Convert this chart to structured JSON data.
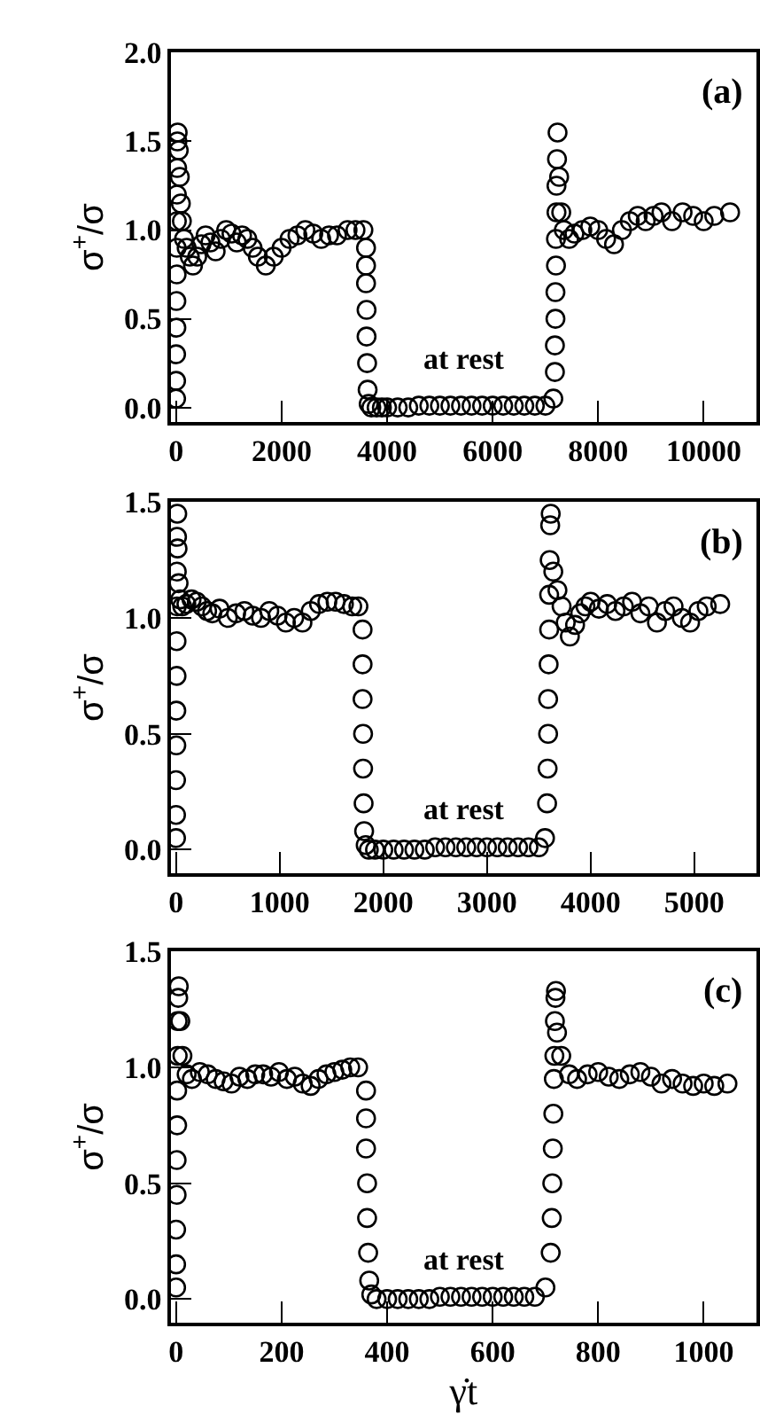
{
  "chart_data": [
    {
      "type": "scatter",
      "ylabel": "σ$^{+}$/σ",
      "annotations": [
        "(a)",
        "at rest"
      ],
      "marker": "circle",
      "xlim": [
        -100,
        11000
      ],
      "ylim": [
        -0.08,
        2.0
      ],
      "xticks": [
        0,
        2000,
        4000,
        6000,
        8000,
        10000
      ],
      "yticks": [
        {
          "value": 0,
          "label": "0.0"
        },
        {
          "value": 0.5,
          "label": "0.5"
        },
        {
          "value": 1,
          "label": "1.0"
        },
        {
          "value": 1.5,
          "label": "1.5"
        },
        {
          "value": 2,
          "label": "2.0"
        }
      ],
      "series": [
        {
          "color": "#000000",
          "x": [
            0,
            0,
            0,
            5,
            5,
            10,
            10,
            15,
            15,
            20,
            25,
            30,
            50,
            70,
            90,
            110,
            150,
            200,
            260,
            320,
            400,
            480,
            560,
            650,
            750,
            850,
            950,
            1050,
            1150,
            1250,
            1350,
            1450,
            1550,
            1700,
            1850,
            2000,
            2150,
            2300,
            2450,
            2600,
            2750,
            2900,
            3050,
            3250,
            3400,
            3550,
            3600,
            3600,
            3600,
            3610,
            3610,
            3620,
            3630,
            3650,
            3700,
            3800,
            3900,
            4000,
            4200,
            4400,
            4600,
            4800,
            5000,
            5200,
            5400,
            5600,
            5800,
            6000,
            6200,
            6400,
            6600,
            6800,
            7000,
            7150,
            7180,
            7180,
            7190,
            7190,
            7200,
            7200,
            7210,
            7210,
            7220,
            7230,
            7260,
            7300,
            7350,
            7450,
            7550,
            7700,
            7850,
            8000,
            8150,
            8300,
            8450,
            8600,
            8750,
            8900,
            9050,
            9200,
            9400,
            9600,
            9800,
            10000,
            10200,
            10500
          ],
          "values": [
            0.05,
            0.15,
            0.3,
            0.45,
            0.6,
            0.75,
            0.9,
            1.05,
            1.2,
            1.35,
            1.5,
            1.55,
            1.45,
            1.3,
            1.15,
            1.05,
            0.95,
            0.9,
            0.85,
            0.8,
            0.85,
            0.92,
            0.97,
            0.93,
            0.88,
            0.95,
            1.0,
            0.98,
            0.93,
            0.97,
            0.95,
            0.9,
            0.85,
            0.8,
            0.85,
            0.9,
            0.95,
            0.97,
            1.0,
            0.98,
            0.95,
            0.97,
            0.97,
            1.0,
            1.0,
            1.0,
            0.9,
            0.8,
            0.7,
            0.55,
            0.4,
            0.25,
            0.1,
            0.02,
            0,
            0,
            0,
            0,
            0,
            0,
            0.01,
            0.01,
            0.01,
            0.01,
            0.01,
            0.01,
            0.01,
            0.01,
            0.01,
            0.01,
            0.01,
            0.01,
            0.01,
            0.05,
            0.2,
            0.35,
            0.5,
            0.65,
            0.8,
            0.95,
            1.1,
            1.25,
            1.4,
            1.55,
            1.3,
            1.1,
            1.0,
            0.95,
            0.98,
            1.0,
            1.02,
            1.0,
            0.95,
            0.92,
            1.0,
            1.05,
            1.08,
            1.05,
            1.08,
            1.1,
            1.05,
            1.1,
            1.08,
            1.05,
            1.08,
            1.1
          ]
        }
      ]
    },
    {
      "type": "scatter",
      "ylabel": "σ$^{+}$/σ",
      "annotations": [
        "(b)",
        "at rest"
      ],
      "marker": "circle",
      "xlim": [
        -50,
        5600
      ],
      "ylim": [
        -0.1,
        1.5
      ],
      "xticks": [
        0,
        1000,
        2000,
        3000,
        4000,
        5000
      ],
      "yticks": [
        {
          "value": 0,
          "label": "0.0"
        },
        {
          "value": 0.5,
          "label": "0.5"
        },
        {
          "value": 1,
          "label": "1.0"
        },
        {
          "value": 1.5,
          "label": "1.5"
        }
      ],
      "series": [
        {
          "color": "#000000",
          "x": [
            0,
            0,
            0,
            3,
            3,
            5,
            5,
            8,
            8,
            10,
            12,
            15,
            25,
            40,
            60,
            100,
            150,
            200,
            250,
            300,
            350,
            420,
            500,
            580,
            660,
            740,
            820,
            900,
            980,
            1060,
            1140,
            1220,
            1300,
            1380,
            1460,
            1540,
            1620,
            1700,
            1760,
            1800,
            1800,
            1800,
            1805,
            1805,
            1810,
            1815,
            1830,
            1860,
            1920,
            2000,
            2100,
            2200,
            2300,
            2400,
            2500,
            2600,
            2700,
            2800,
            2900,
            3000,
            3100,
            3200,
            3300,
            3400,
            3500,
            3560,
            3580,
            3585,
            3590,
            3590,
            3595,
            3600,
            3600,
            3605,
            3610,
            3615,
            3640,
            3680,
            3720,
            3760,
            3800,
            3850,
            3900,
            3950,
            4000,
            4080,
            4160,
            4240,
            4320,
            4400,
            4480,
            4560,
            4640,
            4720,
            4800,
            4880,
            4960,
            5040,
            5120,
            5250
          ],
          "values": [
            0.05,
            0.15,
            0.3,
            0.45,
            0.6,
            0.75,
            0.9,
            1.05,
            1.2,
            1.35,
            1.45,
            1.3,
            1.15,
            1.08,
            1.05,
            1.06,
            1.08,
            1.07,
            1.05,
            1.03,
            1.02,
            1.04,
            1.0,
            1.02,
            1.03,
            1.01,
            1.0,
            1.03,
            1.01,
            0.98,
            1.0,
            0.98,
            1.03,
            1.06,
            1.07,
            1.07,
            1.06,
            1.05,
            1.05,
            0.95,
            0.8,
            0.65,
            0.5,
            0.35,
            0.2,
            0.08,
            0.02,
            0,
            0,
            0,
            0,
            0,
            0,
            0,
            0.01,
            0.01,
            0.01,
            0.01,
            0.01,
            0.01,
            0.01,
            0.01,
            0.01,
            0.01,
            0.01,
            0.05,
            0.2,
            0.35,
            0.5,
            0.65,
            0.8,
            0.95,
            1.1,
            1.25,
            1.4,
            1.45,
            1.2,
            1.12,
            1.05,
            0.98,
            0.92,
            0.97,
            1.02,
            1.05,
            1.07,
            1.04,
            1.06,
            1.03,
            1.05,
            1.07,
            1.02,
            1.05,
            0.98,
            1.03,
            1.05,
            1.0,
            0.98,
            1.03,
            1.05,
            1.06
          ]
        }
      ]
    },
    {
      "type": "scatter",
      "xlabel": "γ̇t",
      "ylabel": "σ$^{+}$/σ",
      "annotations": [
        "(c)",
        "at rest"
      ],
      "marker": "circle",
      "xlim": [
        -10,
        1100
      ],
      "ylim": [
        -0.1,
        1.5
      ],
      "xticks": [
        0,
        200,
        400,
        600,
        800,
        1000
      ],
      "yticks": [
        {
          "value": 0,
          "label": "0.0"
        },
        {
          "value": 0.5,
          "label": "0.5"
        },
        {
          "value": 1,
          "label": "1.0"
        },
        {
          "value": 1.5,
          "label": "1.5"
        }
      ],
      "series": [
        {
          "color": "#000000",
          "x": [
            0,
            0,
            0,
            1,
            1,
            2,
            2,
            3,
            3,
            4,
            5,
            8,
            12,
            20,
            30,
            45,
            60,
            75,
            90,
            105,
            120,
            135,
            150,
            165,
            180,
            195,
            210,
            225,
            240,
            255,
            270,
            285,
            300,
            315,
            330,
            345,
            360,
            360,
            360,
            362,
            362,
            364,
            366,
            370,
            380,
            400,
            420,
            440,
            460,
            480,
            500,
            520,
            540,
            560,
            580,
            600,
            620,
            640,
            660,
            680,
            700,
            710,
            712,
            713,
            714,
            715,
            716,
            717,
            718,
            719,
            720,
            722,
            730,
            745,
            760,
            780,
            800,
            820,
            840,
            860,
            880,
            900,
            920,
            940,
            960,
            980,
            1000,
            1020,
            1045
          ],
          "values": [
            0.05,
            0.15,
            0.3,
            0.45,
            0.6,
            0.75,
            0.9,
            1.05,
            1.2,
            1.3,
            1.35,
            1.2,
            1.05,
            0.97,
            0.95,
            0.98,
            0.97,
            0.95,
            0.94,
            0.93,
            0.96,
            0.95,
            0.97,
            0.97,
            0.96,
            0.98,
            0.95,
            0.96,
            0.93,
            0.92,
            0.95,
            0.97,
            0.98,
            0.99,
            1.0,
            1.0,
            0.9,
            0.78,
            0.65,
            0.5,
            0.35,
            0.2,
            0.08,
            0.02,
            0,
            0,
            0,
            0,
            0,
            0,
            0.01,
            0.01,
            0.01,
            0.01,
            0.01,
            0.01,
            0.01,
            0.01,
            0.01,
            0.01,
            0.05,
            0.2,
            0.35,
            0.5,
            0.65,
            0.8,
            0.95,
            1.05,
            1.2,
            1.3,
            1.33,
            1.15,
            1.05,
            0.97,
            0.95,
            0.97,
            0.98,
            0.96,
            0.95,
            0.97,
            0.98,
            0.96,
            0.93,
            0.95,
            0.93,
            0.92,
            0.93,
            0.92,
            0.93
          ]
        }
      ]
    }
  ]
}
